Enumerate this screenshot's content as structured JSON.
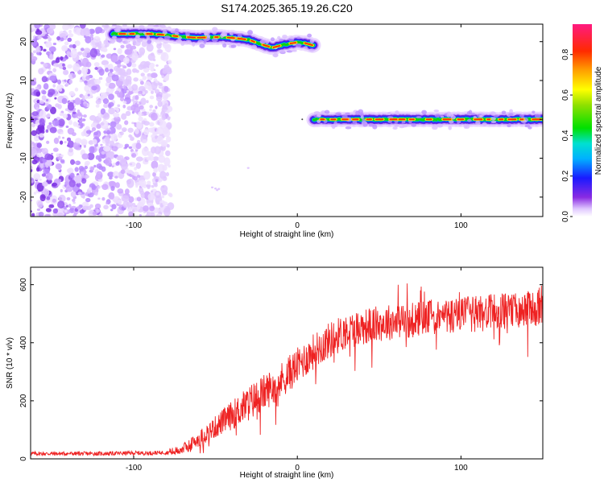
{
  "title": "S174.2025.365.19.26.C20",
  "chart_data": [
    {
      "type": "heatmap",
      "name": "spectrogram",
      "xlabel": "Height of straight line (km)",
      "ylabel": "Frequency (Hz)",
      "xlim": [
        -163,
        150
      ],
      "ylim": [
        -25,
        24.5
      ],
      "x_ticks": [
        -100,
        0,
        100
      ],
      "y_ticks": [
        -20,
        -10,
        0,
        10,
        20
      ],
      "y_tick_labels": [
        "-20",
        "-10",
        "0",
        "10",
        "20"
      ],
      "background_noise_region": {
        "x_from": -163,
        "x_to": -78,
        "y_from": -25,
        "y_to": 24.5
      },
      "ridges": [
        {
          "name": "upper-ridge",
          "x": [
            -113,
            -100,
            -90,
            -80,
            -70,
            -60,
            -50,
            -40,
            -30,
            -20,
            -15,
            -10,
            -5,
            0,
            5,
            10
          ],
          "y": [
            22,
            22,
            22,
            21.7,
            21.2,
            21,
            21.2,
            21,
            20.5,
            19,
            18.5,
            19,
            19.5,
            19.8,
            19.6,
            19
          ]
        },
        {
          "name": "lower-ridge",
          "x": [
            10,
            150
          ],
          "y": [
            0,
            0
          ]
        }
      ],
      "colorbar": {
        "label": "Normalized spectral amplitude",
        "range": [
          0,
          0.95
        ],
        "ticks": [
          0.0,
          0.2,
          0.4,
          0.6,
          0.8
        ],
        "tick_labels": [
          "0.0",
          "0.2",
          "0.4",
          "0.6",
          "0.8"
        ]
      }
    },
    {
      "type": "line",
      "name": "snr",
      "xlabel": "Height of straight line (km)",
      "ylabel": "SNR (10 * v/v)",
      "xlim": [
        -163,
        150
      ],
      "ylim": [
        0,
        660
      ],
      "x_ticks": [
        -100,
        0,
        100
      ],
      "y_ticks": [
        0,
        200,
        400,
        600
      ],
      "y_tick_labels": [
        "0",
        "200",
        "400",
        "600"
      ],
      "color": "#ee2222",
      "trend_x": [
        -163,
        -140,
        -120,
        -100,
        -90,
        -80,
        -75,
        -70,
        -65,
        -60,
        -50,
        -40,
        -30,
        -20,
        -10,
        0,
        10,
        20,
        30,
        40,
        50,
        60,
        70,
        80,
        90,
        100,
        110,
        120,
        130,
        140,
        150
      ],
      "trend_y": [
        18,
        18,
        18,
        20,
        20,
        22,
        25,
        35,
        50,
        70,
        110,
        150,
        190,
        230,
        270,
        320,
        370,
        410,
        440,
        455,
        465,
        475,
        480,
        485,
        490,
        495,
        500,
        505,
        510,
        515,
        520
      ]
    }
  ]
}
